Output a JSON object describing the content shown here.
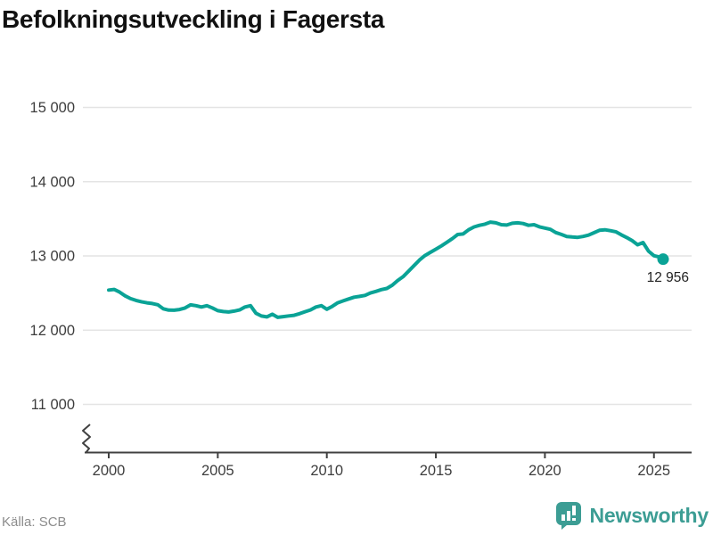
{
  "title": "Befolkningsutveckling i Fagersta",
  "source": "Källa: SCB",
  "end_label": "12 956",
  "logo": {
    "text": "Newsworthy"
  },
  "colors": {
    "line": "#0aa396",
    "logo": "#3c9d94",
    "grid": "#e4e4e4",
    "axis": "#404040",
    "tick_label": "#3d3d3d",
    "end_label": "#222222"
  },
  "chart_data": {
    "type": "line",
    "title": "Befolkningsutveckling i Fagersta",
    "xlabel": "",
    "ylabel": "",
    "grid": true,
    "legend": "none",
    "axis_break": true,
    "xlim": [
      1999.5,
      2026
    ],
    "ylim": [
      10800,
      15200
    ],
    "x_ticks": [
      2000,
      2005,
      2010,
      2015,
      2020,
      2025
    ],
    "x_tick_labels": [
      "2000",
      "2005",
      "2010",
      "2015",
      "2020",
      "2025"
    ],
    "y_ticks": [
      15000,
      14000,
      13000,
      12000,
      11000
    ],
    "y_tick_labels": [
      "15 000",
      "14 000",
      "13 000",
      "12 000",
      "11 000"
    ],
    "last_value": 12956,
    "x": [
      2000,
      2000.25,
      2000.5,
      2000.75,
      2001,
      2001.25,
      2001.5,
      2001.75,
      2002,
      2002.25,
      2002.5,
      2002.75,
      2003,
      2003.25,
      2003.5,
      2003.75,
      2004,
      2004.25,
      2004.5,
      2004.75,
      2005,
      2005.25,
      2005.5,
      2005.75,
      2006,
      2006.25,
      2006.5,
      2006.75,
      2007,
      2007.25,
      2007.5,
      2007.75,
      2008,
      2008.25,
      2008.5,
      2008.75,
      2009,
      2009.25,
      2009.5,
      2009.75,
      2010,
      2010.25,
      2010.5,
      2010.75,
      2011,
      2011.25,
      2011.5,
      2011.75,
      2012,
      2012.25,
      2012.5,
      2012.75,
      2013,
      2013.25,
      2013.5,
      2013.75,
      2014,
      2014.25,
      2014.5,
      2014.75,
      2015,
      2015.25,
      2015.5,
      2015.75,
      2016,
      2016.25,
      2016.5,
      2016.75,
      2017,
      2017.25,
      2017.5,
      2017.75,
      2018,
      2018.25,
      2018.5,
      2018.75,
      2019,
      2019.25,
      2019.5,
      2019.75,
      2020,
      2020.25,
      2020.5,
      2020.75,
      2021,
      2021.25,
      2021.5,
      2021.75,
      2022,
      2022.25,
      2022.5,
      2022.75,
      2023,
      2023.25,
      2023.5,
      2023.75,
      2024,
      2024.25,
      2024.5,
      2024.75,
      2025,
      2025.25,
      2025.42
    ],
    "values": [
      12540,
      12548,
      12512,
      12462,
      12425,
      12400,
      12382,
      12368,
      12358,
      12342,
      12288,
      12270,
      12268,
      12278,
      12298,
      12340,
      12330,
      12312,
      12330,
      12300,
      12262,
      12250,
      12245,
      12256,
      12272,
      12312,
      12330,
      12228,
      12190,
      12178,
      12215,
      12172,
      12182,
      12192,
      12200,
      12222,
      12248,
      12272,
      12312,
      12330,
      12282,
      12320,
      12368,
      12395,
      12420,
      12444,
      12455,
      12468,
      12500,
      12522,
      12546,
      12562,
      12605,
      12668,
      12720,
      12795,
      12870,
      12945,
      13005,
      13048,
      13090,
      13135,
      13182,
      13232,
      13288,
      13296,
      13352,
      13390,
      13412,
      13428,
      13455,
      13446,
      13420,
      13416,
      13440,
      13446,
      13436,
      13412,
      13420,
      13392,
      13375,
      13358,
      13315,
      13290,
      13262,
      13255,
      13250,
      13262,
      13280,
      13312,
      13345,
      13352,
      13340,
      13325,
      13285,
      13248,
      13205,
      13150,
      13180,
      13065,
      13002,
      12985,
      12956
    ]
  }
}
